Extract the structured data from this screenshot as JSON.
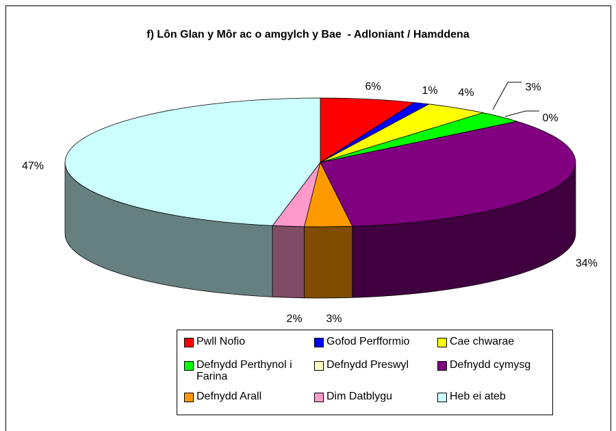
{
  "chart_data": {
    "type": "pie3d",
    "title": "f) Lôn Glan y Môr ac o amgylch y Bae  - Adloniant / Hamddena",
    "categories": [
      "Pwll Nofio",
      "Gofod Perfformio",
      "Cae chwarae",
      "Defnydd Perthynol i Farina",
      "Defnydd Preswyl",
      "Defnydd cymysg",
      "Defnydd Arall",
      "Dim Datblygu",
      "Heb ei ateb"
    ],
    "values": [
      6,
      1,
      4,
      3,
      0,
      34,
      3,
      2,
      47
    ],
    "value_labels": [
      "6%",
      "1%",
      "4%",
      "3%",
      "0%",
      "34%",
      "3%",
      "2%",
      "47%"
    ],
    "colors": [
      "#ff0000",
      "#0000ff",
      "#ffff00",
      "#00ff00",
      "#ffffc0",
      "#800080",
      "#ff9900",
      "#ff99cc",
      "#ccffff"
    ],
    "legend": "bottom"
  }
}
